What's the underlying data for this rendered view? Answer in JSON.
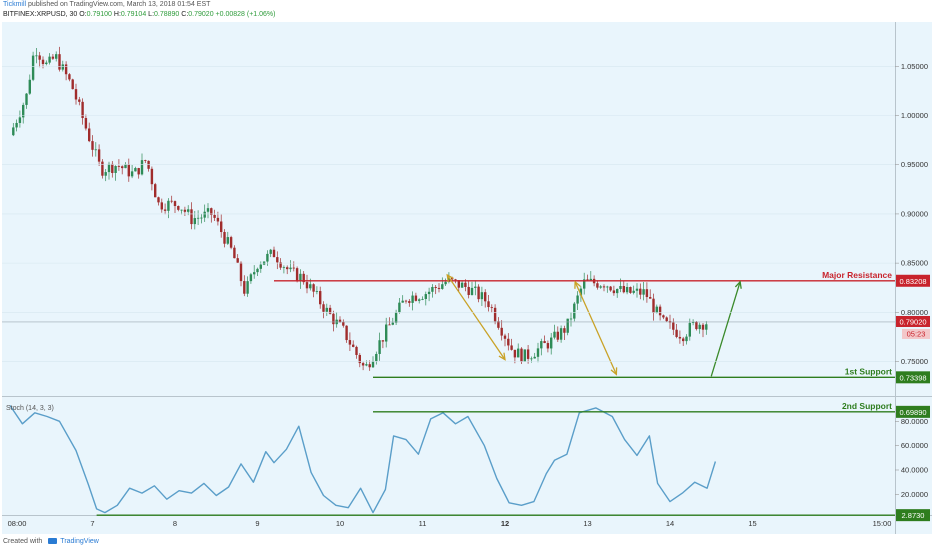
{
  "header": {
    "author": "Tickmill",
    "published": "published on TradingView.com, March 13, 2018 01:54 EST",
    "symbol": "BITFINEX:XRPUSD, 30",
    "open_label": "O:",
    "open": "0.79100",
    "high_label": "H:",
    "high": "0.79104",
    "low_label": "L:",
    "low": "0.78890",
    "close_label": "C:",
    "close": "0.79020",
    "change": "+0.00828 (+1.06%)"
  },
  "footer": {
    "created_with": "Created with",
    "brand": "TradingView"
  },
  "colors": {
    "background": "#e9f5fc",
    "candle_up": "#2e8b57",
    "candle_down": "#a02c2c",
    "resistance": "#c8232c",
    "support": "#2e7d1e",
    "arrow": "#c9a227",
    "projection": "#3a8a2a",
    "stoch": "#5a9ec9"
  },
  "chart_data": [
    {
      "type": "candlestick",
      "x_ticks": [
        "08:00",
        "7",
        "8",
        "9",
        "10",
        "11",
        "12",
        "13",
        "14",
        "15",
        "15:00"
      ],
      "y_ticks": [
        "1.05000",
        "1.00000",
        "0.95000",
        "0.90000",
        "0.85000",
        "0.80000",
        "0.75000"
      ],
      "ylim": [
        0.715,
        1.095
      ],
      "price_path": [
        [
          0.0,
          0.98
        ],
        [
          0.2,
          1.02
        ],
        [
          0.3,
          1.07
        ],
        [
          0.45,
          1.05
        ],
        [
          0.55,
          1.06
        ],
        [
          0.75,
          1.03
        ],
        [
          0.95,
          0.98
        ],
        [
          1.1,
          0.945
        ],
        [
          1.3,
          0.95
        ],
        [
          1.5,
          0.94
        ],
        [
          1.65,
          0.955
        ],
        [
          1.8,
          0.91
        ],
        [
          2.05,
          0.91
        ],
        [
          2.2,
          0.895
        ],
        [
          2.45,
          0.9
        ],
        [
          2.7,
          0.86
        ],
        [
          2.85,
          0.82
        ],
        [
          3.0,
          0.85
        ],
        [
          3.2,
          0.86
        ],
        [
          3.4,
          0.84
        ],
        [
          3.55,
          0.835
        ],
        [
          3.85,
          0.8
        ],
        [
          4.05,
          0.78
        ],
        [
          4.3,
          0.742
        ],
        [
          4.45,
          0.765
        ],
        [
          4.8,
          0.815
        ],
        [
          5.05,
          0.82
        ],
        [
          5.3,
          0.832
        ],
        [
          5.55,
          0.825
        ],
        [
          5.8,
          0.81
        ],
        [
          6.1,
          0.76
        ],
        [
          6.25,
          0.755
        ],
        [
          6.55,
          0.77
        ],
        [
          6.75,
          0.785
        ],
        [
          6.95,
          0.83
        ],
        [
          7.2,
          0.83
        ],
        [
          7.45,
          0.82
        ],
        [
          7.7,
          0.82
        ],
        [
          7.9,
          0.79
        ],
        [
          8.15,
          0.777
        ],
        [
          8.3,
          0.788
        ],
        [
          8.45,
          0.79
        ]
      ],
      "levels": [
        {
          "label": "Major Resistance",
          "value": "0.83208",
          "price": 0.83208,
          "x_start": 3.2
        },
        {
          "label": "1st Support",
          "value": "0.73398",
          "price": 0.73398,
          "x_start": 4.4
        },
        {
          "label": "2nd Support",
          "value": "0.69890",
          "price": 0.6989,
          "x_start": 4.4
        }
      ],
      "current_price": "0.79020",
      "countdown": "05:23",
      "arrows": [
        {
          "from": [
            5.3,
            0.838
          ],
          "to": [
            6.0,
            0.752
          ]
        },
        {
          "from": [
            6.85,
            0.831
          ],
          "to": [
            7.35,
            0.737
          ]
        },
        {
          "from": [
            8.5,
            0.735
          ],
          "to": [
            8.85,
            0.831
          ],
          "role": "projection"
        }
      ]
    },
    {
      "type": "line",
      "title": "Stoch (14, 3, 3)",
      "y_ticks": [
        "80.0000",
        "60.0000",
        "40.0000",
        "20.0000"
      ],
      "ylim": [
        3,
        100
      ],
      "values": [
        [
          0.0,
          93
        ],
        [
          0.15,
          78
        ],
        [
          0.3,
          87
        ],
        [
          0.45,
          84
        ],
        [
          0.6,
          80
        ],
        [
          0.8,
          56
        ],
        [
          0.95,
          28
        ],
        [
          1.05,
          8
        ],
        [
          1.15,
          5
        ],
        [
          1.3,
          11
        ],
        [
          1.45,
          25
        ],
        [
          1.6,
          21
        ],
        [
          1.75,
          27
        ],
        [
          1.9,
          16
        ],
        [
          2.05,
          23
        ],
        [
          2.2,
          21
        ],
        [
          2.35,
          29
        ],
        [
          2.5,
          19
        ],
        [
          2.65,
          26
        ],
        [
          2.8,
          45
        ],
        [
          2.95,
          30
        ],
        [
          3.1,
          55
        ],
        [
          3.2,
          46
        ],
        [
          3.35,
          57
        ],
        [
          3.5,
          76
        ],
        [
          3.65,
          38
        ],
        [
          3.8,
          19
        ],
        [
          3.95,
          11
        ],
        [
          4.1,
          9
        ],
        [
          4.25,
          25
        ],
        [
          4.4,
          5
        ],
        [
          4.55,
          24
        ],
        [
          4.65,
          68
        ],
        [
          4.8,
          65
        ],
        [
          4.95,
          53
        ],
        [
          5.1,
          82
        ],
        [
          5.25,
          87
        ],
        [
          5.4,
          78
        ],
        [
          5.55,
          84
        ],
        [
          5.75,
          60
        ],
        [
          5.9,
          33
        ],
        [
          6.05,
          13
        ],
        [
          6.2,
          11
        ],
        [
          6.35,
          14
        ],
        [
          6.5,
          37
        ],
        [
          6.6,
          48
        ],
        [
          6.75,
          53
        ],
        [
          6.9,
          87
        ],
        [
          7.1,
          91
        ],
        [
          7.3,
          84
        ],
        [
          7.45,
          65
        ],
        [
          7.6,
          52
        ],
        [
          7.75,
          68
        ],
        [
          7.85,
          29
        ],
        [
          8.0,
          14
        ],
        [
          8.15,
          21
        ],
        [
          8.3,
          30
        ],
        [
          8.45,
          25
        ],
        [
          8.55,
          47
        ]
      ],
      "level": {
        "value": "2.8730",
        "y": 2.873
      }
    }
  ]
}
